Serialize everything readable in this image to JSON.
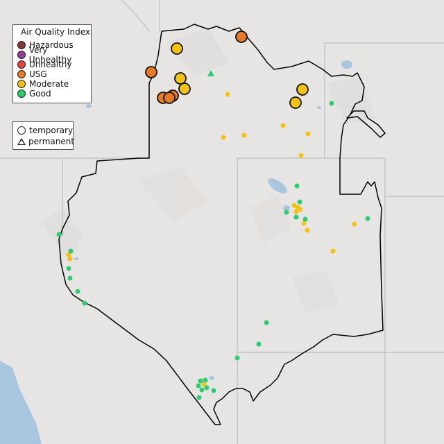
{
  "legend": {
    "title": "Air Quality Index",
    "categories": [
      {
        "label": "Hazardous",
        "color": "#7e3b33"
      },
      {
        "label": "Very Unhealthy",
        "color": "#8f3f97"
      },
      {
        "label": "Unhealthy",
        "color": "#e5453b"
      },
      {
        "label": "USG",
        "color": "#e77a25"
      },
      {
        "label": "Moderate",
        "color": "#f2c315"
      },
      {
        "label": "Good",
        "color": "#2ecc71"
      }
    ]
  },
  "monitor_types": {
    "temporary_label": "temporary",
    "permanent_label": "permanent"
  },
  "colors": {
    "land": "#e7e5e3",
    "water": "#a8c6dd",
    "state_border": "#bdbdbd",
    "region_outline": "#000000"
  }
}
